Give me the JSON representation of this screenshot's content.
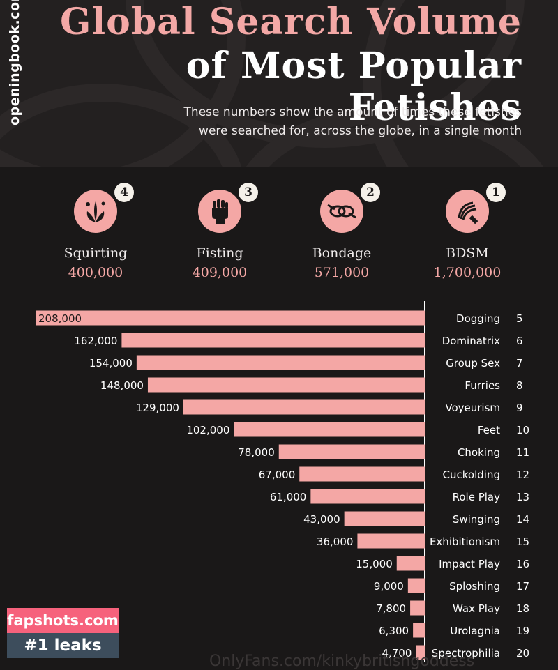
{
  "side_url": "openingbook.com",
  "title": {
    "line1": "Global Search Volume",
    "line2": "of Most Popular Fetishes"
  },
  "subtitle": {
    "line1": "These numbers show the amount of times these fetishes",
    "line2": "were searched for, across the globe, in a single month"
  },
  "top4": [
    {
      "rank": "1",
      "name": "BDSM",
      "value": "1,700,000",
      "icon": "whip-icon"
    },
    {
      "rank": "2",
      "name": "Bondage",
      "value": "571,000",
      "icon": "rope-icon"
    },
    {
      "rank": "3",
      "name": "Fisting",
      "value": "409,000",
      "icon": "fist-icon"
    },
    {
      "rank": "4",
      "name": "Squirting",
      "value": "400,000",
      "icon": "splash-icon"
    }
  ],
  "chart_data": {
    "type": "bar",
    "orientation": "horizontal",
    "categories": [
      "Dogging",
      "Dominatrix",
      "Group Sex",
      "Furries",
      "Voyeurism",
      "Feet",
      "Choking",
      "Cuckolding",
      "Role Play",
      "Swinging",
      "Exhibitionism",
      "Impact Play",
      "Sploshing",
      "Wax Play",
      "Urolagnia",
      "Spectrophilia"
    ],
    "ranks": [
      "5",
      "6",
      "7",
      "8",
      "9",
      "10",
      "11",
      "12",
      "13",
      "14",
      "15",
      "16",
      "17",
      "18",
      "19",
      "20"
    ],
    "values": [
      208000,
      162000,
      154000,
      148000,
      129000,
      102000,
      78000,
      67000,
      61000,
      43000,
      36000,
      15000,
      9000,
      7800,
      6300,
      4700
    ],
    "value_labels": [
      "208,000",
      "162,000",
      "154,000",
      "148,000",
      "129,000",
      "102,000",
      "78,000",
      "67,000",
      "61,000",
      "43,000",
      "36,000",
      "15,000",
      "9,000",
      "7,800",
      "6,300",
      "4,700"
    ],
    "xlim": [
      0,
      208000
    ],
    "title": "",
    "xlabel": "",
    "ylabel": "",
    "grid": false,
    "bar_color": "#f4a7a5"
  },
  "watermark": {
    "line1": "fapshots.com",
    "line2": "#1 leaks"
  },
  "footer_text": "OnlyFans.com/kinkybritishgoddess"
}
